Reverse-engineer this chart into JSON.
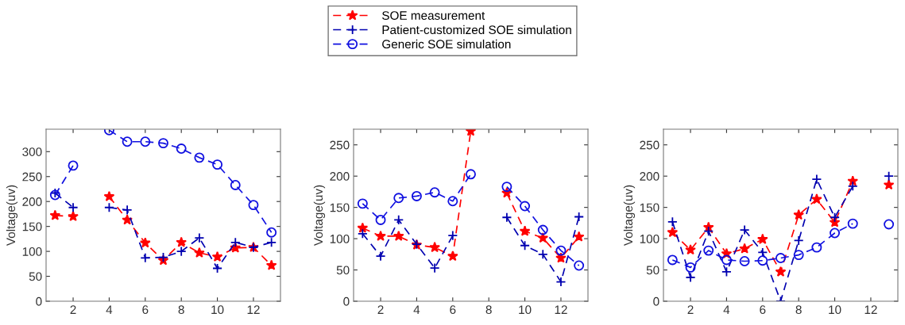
{
  "chart_data": [
    {
      "type": "line",
      "ylabel": "Voltage(uv)",
      "x": [
        1,
        2,
        3,
        4,
        5,
        6,
        7,
        8,
        9,
        10,
        11,
        12,
        13
      ],
      "xlim": [
        0.5,
        13.5
      ],
      "ylim": [
        0,
        345
      ],
      "xticks": [
        2,
        4,
        6,
        8,
        10,
        12
      ],
      "yticks": [
        0,
        50,
        100,
        150,
        200,
        250,
        300
      ],
      "line_style": "dashed",
      "legend": "top",
      "series": [
        {
          "name": "SOE measurement",
          "color": "#ff0000",
          "marker": "star",
          "values": [
            172,
            170,
            null,
            210,
            163,
            117,
            82,
            118,
            97,
            89,
            107,
            108,
            72
          ]
        },
        {
          "name": "Patient-customized SOE simulation",
          "color": "#0000b0",
          "marker": "cross",
          "values": [
            217,
            188,
            null,
            188,
            183,
            87,
            88,
            100,
            127,
            66,
            118,
            108,
            118
          ]
        },
        {
          "name": "Generic SOE simulation",
          "color": "#1010e0",
          "marker": "circle",
          "values": [
            213,
            272,
            null,
            343,
            320,
            320,
            317,
            306,
            288,
            274,
            233,
            193,
            138
          ]
        }
      ]
    },
    {
      "type": "line",
      "ylabel": "Voltage(uv)",
      "x": [
        1,
        2,
        3,
        4,
        5,
        6,
        7,
        8,
        9,
        10,
        11,
        12,
        13
      ],
      "xlim": [
        0.5,
        13.5
      ],
      "ylim": [
        0,
        275
      ],
      "xticks": [
        2,
        4,
        6,
        8,
        10,
        12
      ],
      "yticks": [
        0,
        50,
        100,
        150,
        200,
        250
      ],
      "line_style": "dashed",
      "series": [
        {
          "color": "#ff0000",
          "marker": "star",
          "values": [
            117,
            104,
            104,
            90,
            86,
            72,
            272,
            null,
            173,
            112,
            101,
            69,
            103
          ]
        },
        {
          "color": "#0000b0",
          "marker": "cross",
          "values": [
            108,
            72,
            130,
            91,
            53,
            105,
            null,
            null,
            134,
            89,
            75,
            31,
            135
          ]
        },
        {
          "color": "#1010e0",
          "marker": "circle",
          "values": [
            156,
            130,
            165,
            168,
            174,
            160,
            203,
            null,
            183,
            152,
            114,
            81,
            57
          ]
        }
      ]
    },
    {
      "type": "line",
      "ylabel": "Voltage(uv)",
      "x": [
        1,
        2,
        3,
        4,
        5,
        6,
        7,
        8,
        9,
        10,
        11,
        12,
        13
      ],
      "xlim": [
        0.5,
        13.5
      ],
      "ylim": [
        0,
        275
      ],
      "xticks": [
        2,
        4,
        6,
        8,
        10,
        12
      ],
      "yticks": [
        0,
        50,
        100,
        150,
        200,
        250
      ],
      "line_style": "dashed",
      "series": [
        {
          "color": "#ff0000",
          "marker": "star",
          "values": [
            110,
            82,
            118,
            76,
            84,
            99,
            47,
            138,
            163,
            126,
            192,
            null,
            186
          ]
        },
        {
          "color": "#0000b0",
          "marker": "cross",
          "values": [
            127,
            38,
            112,
            47,
            114,
            78,
            0,
            97,
            195,
            134,
            184,
            null,
            200
          ]
        },
        {
          "color": "#1010e0",
          "marker": "circle",
          "values": [
            66,
            54,
            81,
            66,
            64,
            65,
            69,
            74,
            86,
            109,
            124,
            null,
            123
          ]
        }
      ]
    }
  ]
}
